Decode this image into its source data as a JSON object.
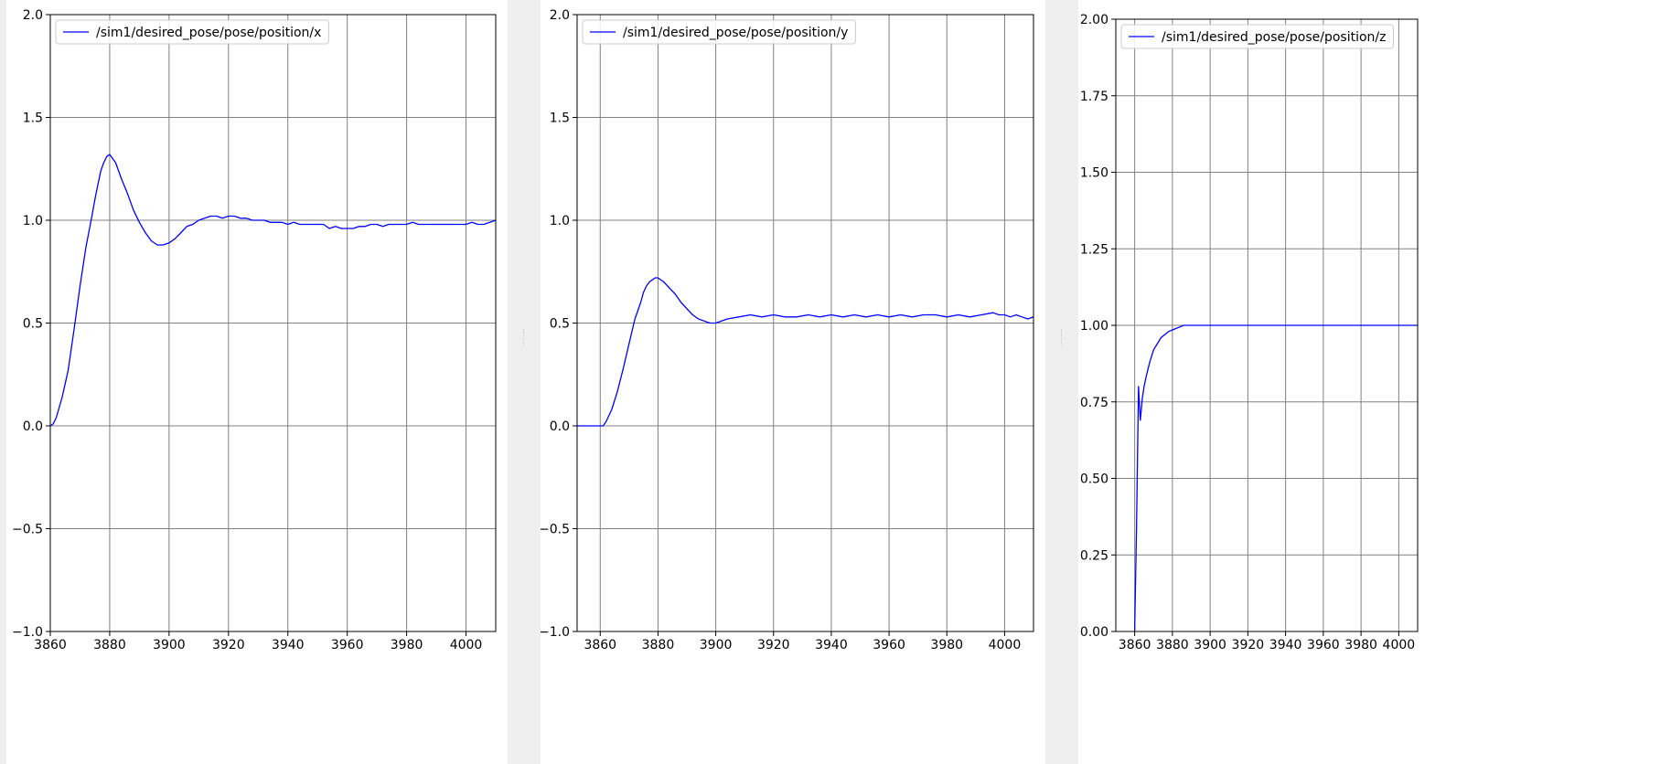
{
  "window": {
    "background": "#efefef",
    "panel_background": "#ffffff"
  },
  "style": {
    "line_color": "#0000ff",
    "grid_color": "#808080",
    "axes_color": "#000000"
  },
  "chart_data": [
    {
      "type": "line",
      "title": "",
      "xlabel": "",
      "ylabel": "",
      "grid": true,
      "legend_position": "top-left",
      "xlim": [
        3860,
        4010
      ],
      "ylim": [
        -1.0,
        2.0
      ],
      "xticks": [
        3860,
        3880,
        3900,
        3920,
        3940,
        3960,
        3980,
        4000
      ],
      "xtick_labels": [
        "3860",
        "3880",
        "3900",
        "3920",
        "3940",
        "3960",
        "3980",
        "4000"
      ],
      "yticks": [
        -1.0,
        -0.5,
        0.0,
        0.5,
        1.0,
        1.5,
        2.0
      ],
      "ytick_labels": [
        "−1.0",
        "−0.5",
        "0.0",
        "0.5",
        "1.0",
        "1.5",
        "2.0"
      ],
      "series": [
        {
          "name": "/sim1/desired_pose/pose/position/x",
          "color": "#0000ff",
          "x": [
            3860,
            3861,
            3862,
            3864,
            3866,
            3868,
            3870,
            3872,
            3874,
            3875,
            3876,
            3877,
            3878,
            3879,
            3880,
            3882,
            3884,
            3886,
            3888,
            3890,
            3892,
            3894,
            3896,
            3898,
            3900,
            3902,
            3904,
            3906,
            3908,
            3910,
            3912,
            3914,
            3916,
            3918,
            3920,
            3922,
            3924,
            3926,
            3928,
            3930,
            3932,
            3934,
            3936,
            3938,
            3940,
            3942,
            3944,
            3946,
            3948,
            3950,
            3952,
            3954,
            3956,
            3958,
            3960,
            3962,
            3964,
            3966,
            3968,
            3970,
            3972,
            3974,
            3976,
            3978,
            3980,
            3982,
            3984,
            3986,
            3988,
            3990,
            3992,
            3994,
            3996,
            3998,
            4000,
            4002,
            4004,
            4006,
            4008,
            4010
          ],
          "y": [
            0.0,
            0.01,
            0.04,
            0.14,
            0.27,
            0.47,
            0.68,
            0.87,
            1.02,
            1.1,
            1.17,
            1.24,
            1.28,
            1.31,
            1.32,
            1.28,
            1.2,
            1.13,
            1.05,
            0.99,
            0.94,
            0.9,
            0.88,
            0.88,
            0.89,
            0.91,
            0.94,
            0.97,
            0.98,
            1.0,
            1.01,
            1.02,
            1.02,
            1.01,
            1.02,
            1.02,
            1.01,
            1.01,
            1.0,
            1.0,
            1.0,
            0.99,
            0.99,
            0.99,
            0.98,
            0.99,
            0.98,
            0.98,
            0.98,
            0.98,
            0.98,
            0.96,
            0.97,
            0.96,
            0.96,
            0.96,
            0.97,
            0.97,
            0.98,
            0.98,
            0.97,
            0.98,
            0.98,
            0.98,
            0.98,
            0.99,
            0.98,
            0.98,
            0.98,
            0.98,
            0.98,
            0.98,
            0.98,
            0.98,
            0.98,
            0.99,
            0.98,
            0.98,
            0.99,
            1.0
          ]
        }
      ]
    },
    {
      "type": "line",
      "title": "",
      "xlabel": "",
      "ylabel": "",
      "grid": true,
      "legend_position": "top-left",
      "xlim": [
        3852,
        4010
      ],
      "ylim": [
        -1.0,
        2.0
      ],
      "xticks": [
        3860,
        3880,
        3900,
        3920,
        3940,
        3960,
        3980,
        4000
      ],
      "xtick_labels": [
        "3860",
        "3880",
        "3900",
        "3920",
        "3940",
        "3960",
        "3980",
        "4000"
      ],
      "yticks": [
        -1.0,
        -0.5,
        0.0,
        0.5,
        1.0,
        1.5,
        2.0
      ],
      "ytick_labels": [
        "−1.0",
        "−0.5",
        "0.0",
        "0.5",
        "1.0",
        "1.5",
        "2.0"
      ],
      "series": [
        {
          "name": "/sim1/desired_pose/pose/position/y",
          "color": "#0000ff",
          "x": [
            3852,
            3856,
            3860,
            3861,
            3862,
            3864,
            3866,
            3868,
            3870,
            3872,
            3874,
            3875,
            3876,
            3877,
            3878,
            3879,
            3880,
            3882,
            3884,
            3886,
            3888,
            3890,
            3892,
            3894,
            3896,
            3898,
            3900,
            3904,
            3908,
            3912,
            3916,
            3920,
            3924,
            3928,
            3932,
            3936,
            3940,
            3944,
            3948,
            3952,
            3956,
            3960,
            3964,
            3968,
            3972,
            3976,
            3980,
            3984,
            3988,
            3992,
            3996,
            3998,
            4000,
            4002,
            4004,
            4006,
            4008,
            4010
          ],
          "y": [
            0.0,
            0.0,
            0.0,
            0.0,
            0.02,
            0.08,
            0.17,
            0.28,
            0.4,
            0.52,
            0.6,
            0.65,
            0.68,
            0.7,
            0.71,
            0.72,
            0.72,
            0.7,
            0.67,
            0.64,
            0.6,
            0.57,
            0.54,
            0.52,
            0.51,
            0.5,
            0.5,
            0.52,
            0.53,
            0.54,
            0.53,
            0.54,
            0.53,
            0.53,
            0.54,
            0.53,
            0.54,
            0.53,
            0.54,
            0.53,
            0.54,
            0.53,
            0.54,
            0.53,
            0.54,
            0.54,
            0.53,
            0.54,
            0.53,
            0.54,
            0.55,
            0.54,
            0.54,
            0.53,
            0.54,
            0.53,
            0.52,
            0.53
          ]
        }
      ]
    },
    {
      "type": "line",
      "title": "",
      "xlabel": "",
      "ylabel": "",
      "grid": true,
      "legend_position": "top-left",
      "xlim": [
        3850,
        4010
      ],
      "ylim": [
        0.0,
        2.0
      ],
      "xticks": [
        3860,
        3880,
        3900,
        3920,
        3940,
        3960,
        3980,
        4000
      ],
      "xtick_labels": [
        "3860",
        "3880",
        "3900",
        "3920",
        "3940",
        "3960",
        "3980",
        "4000"
      ],
      "yticks": [
        0.0,
        0.25,
        0.5,
        0.75,
        1.0,
        1.25,
        1.5,
        1.75,
        2.0
      ],
      "ytick_labels": [
        "0.00",
        "0.25",
        "0.50",
        "0.75",
        "1.00",
        "1.25",
        "1.50",
        "1.75",
        "2.00"
      ],
      "series": [
        {
          "name": "/sim1/desired_pose/pose/position/z",
          "color": "#0000ff",
          "x": [
            3860,
            3861,
            3862,
            3863,
            3864,
            3865,
            3866,
            3868,
            3870,
            3872,
            3874,
            3876,
            3878,
            3880,
            3882,
            3884,
            3886,
            3888,
            3890,
            3894,
            3898,
            3902,
            3906,
            3910,
            3914,
            3918,
            3922,
            3926,
            3930,
            3934,
            3938,
            3942,
            3946,
            3950,
            3954,
            3958,
            3962,
            3966,
            3970,
            3974,
            3978,
            3982,
            3986,
            3990,
            3994,
            3998,
            4002,
            4006,
            4010
          ],
          "y": [
            0.0,
            0.35,
            0.8,
            0.69,
            0.76,
            0.8,
            0.83,
            0.88,
            0.92,
            0.94,
            0.96,
            0.97,
            0.98,
            0.985,
            0.99,
            0.995,
            1.0,
            1.0,
            1.0,
            1.0,
            1.0,
            1.0,
            1.0,
            1.0,
            1.0,
            1.0,
            1.0,
            1.0,
            1.0,
            1.0,
            1.0,
            1.0,
            1.0,
            1.0,
            1.0,
            1.0,
            1.0,
            1.0,
            1.0,
            1.0,
            1.0,
            1.0,
            1.0,
            1.0,
            1.0,
            1.0,
            1.0,
            1.0,
            1.0
          ]
        }
      ]
    }
  ]
}
